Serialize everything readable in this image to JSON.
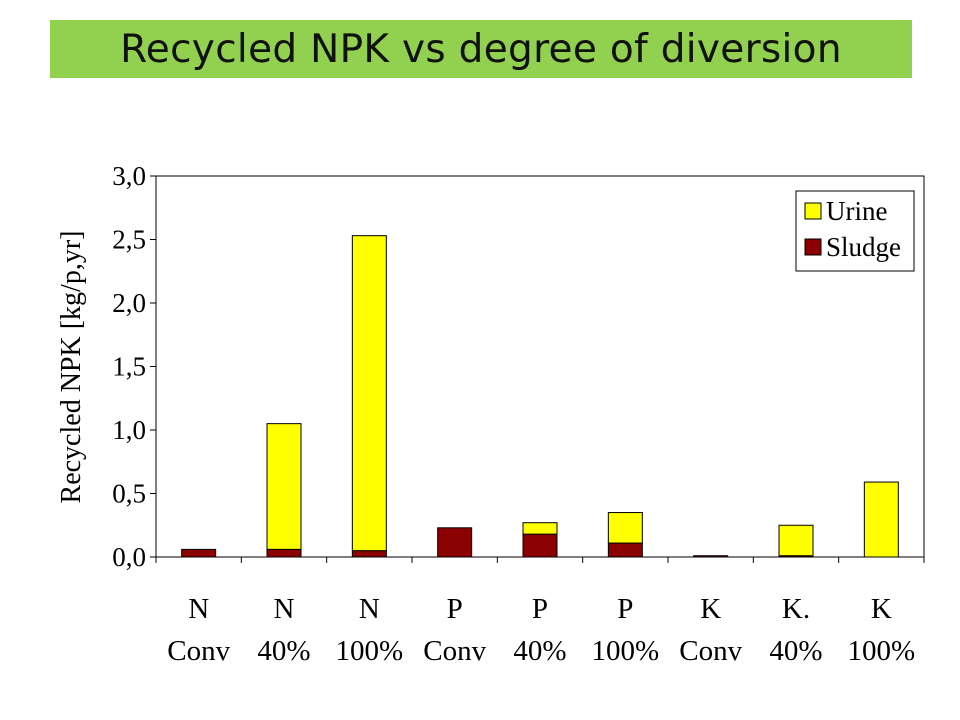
{
  "slide": {
    "title": "Recycled NPK vs degree of diversion",
    "title_band_color": "#92d050"
  },
  "chart_data": {
    "type": "bar",
    "stacked": true,
    "title": "",
    "ylabel": "Recycled NPK [kg/p,yr]",
    "xlabel": "",
    "ylim": [
      0,
      3.0
    ],
    "yticks": [
      0,
      0.5,
      1.0,
      1.5,
      2.0,
      2.5,
      3.0
    ],
    "ytick_labels": [
      "0,0",
      "0,5",
      "1,0",
      "1,5",
      "2,0",
      "2,5",
      "3,0"
    ],
    "grid": false,
    "legend_position": "top-right",
    "categories": [
      {
        "line1": "N",
        "line2": "Conv"
      },
      {
        "line1": "N",
        "line2": "40%"
      },
      {
        "line1": "N",
        "line2": "100%"
      },
      {
        "line1": "P",
        "line2": "Conv"
      },
      {
        "line1": "P",
        "line2": "40%"
      },
      {
        "line1": "P",
        "line2": "100%"
      },
      {
        "line1": "K",
        "line2": "Conv"
      },
      {
        "line1": "K.",
        "line2": "40%"
      },
      {
        "line1": "K",
        "line2": "100%"
      }
    ],
    "series": [
      {
        "name": "Sludge",
        "color": "#8b0000",
        "values": [
          0.06,
          0.06,
          0.05,
          0.23,
          0.18,
          0.11,
          0.01,
          0.01,
          0.0
        ]
      },
      {
        "name": "Urine",
        "color": "#ffff00",
        "values": [
          0.0,
          0.99,
          2.48,
          0.0,
          0.09,
          0.24,
          0.0,
          0.24,
          0.59
        ]
      }
    ],
    "legend_order": [
      "Urine",
      "Sludge"
    ]
  }
}
